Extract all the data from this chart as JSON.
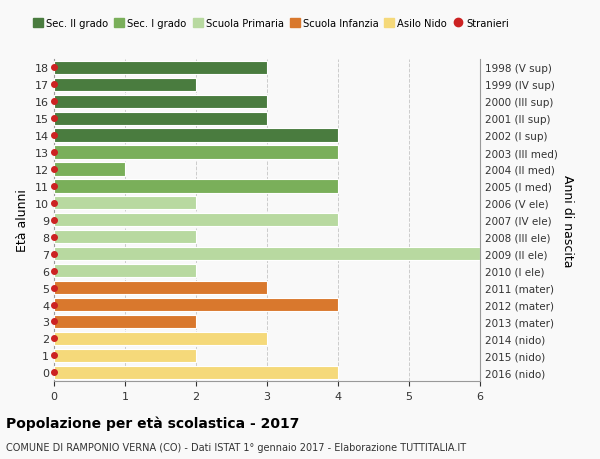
{
  "ages": [
    18,
    17,
    16,
    15,
    14,
    13,
    12,
    11,
    10,
    9,
    8,
    7,
    6,
    5,
    4,
    3,
    2,
    1,
    0
  ],
  "right_labels": [
    "1998 (V sup)",
    "1999 (IV sup)",
    "2000 (III sup)",
    "2001 (II sup)",
    "2002 (I sup)",
    "2003 (III med)",
    "2004 (II med)",
    "2005 (I med)",
    "2006 (V ele)",
    "2007 (IV ele)",
    "2008 (III ele)",
    "2009 (II ele)",
    "2010 (I ele)",
    "2011 (mater)",
    "2012 (mater)",
    "2013 (mater)",
    "2014 (nido)",
    "2015 (nido)",
    "2016 (nido)"
  ],
  "bar_values": [
    3,
    2,
    3,
    3,
    4,
    4,
    1,
    4,
    2,
    4,
    2,
    6,
    2,
    3,
    4,
    2,
    3,
    2,
    4
  ],
  "bar_colors": [
    "#4a7c3f",
    "#4a7c3f",
    "#4a7c3f",
    "#4a7c3f",
    "#4a7c3f",
    "#7aaf5a",
    "#7aaf5a",
    "#7aaf5a",
    "#b8d9a0",
    "#b8d9a0",
    "#b8d9a0",
    "#b8d9a0",
    "#b8d9a0",
    "#d9782d",
    "#d9782d",
    "#d9782d",
    "#f5d97a",
    "#f5d97a",
    "#f5d97a"
  ],
  "legend_labels": [
    "Sec. II grado",
    "Sec. I grado",
    "Scuola Primaria",
    "Scuola Infanzia",
    "Asilo Nido",
    "Stranieri"
  ],
  "legend_colors": [
    "#4a7c3f",
    "#7aaf5a",
    "#b8d9a0",
    "#d9782d",
    "#f5d97a",
    "#cc2222"
  ],
  "legend_markers": [
    "s",
    "s",
    "s",
    "s",
    "s",
    "o"
  ],
  "ylabel": "Età alunni",
  "right_ylabel": "Anni di nascita",
  "title": "Popolazione per età scolastica - 2017",
  "subtitle": "COMUNE DI RAMPONIO VERNA (CO) - Dati ISTAT 1° gennaio 2017 - Elaborazione TUTTITALIA.IT",
  "xlim": [
    0,
    6
  ],
  "xticks": [
    0,
    1,
    2,
    3,
    4,
    5,
    6
  ],
  "background_color": "#f9f9f9",
  "grid_color": "#cccccc",
  "bar_height": 0.78,
  "stranieri_dot_color": "#cc2222"
}
